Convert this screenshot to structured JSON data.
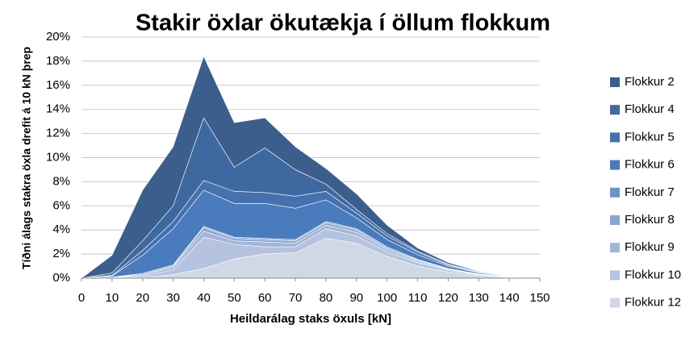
{
  "chart_data": {
    "type": "stacked_area",
    "title": "Stakir öxlar ökutækja í öllum flokkum",
    "x_label": "Heildarálag staks öxuls  [kN]",
    "y_label": "Tíðni álags  stakra öxla drefit á 10 kN  þrep",
    "x": [
      0,
      10,
      20,
      30,
      40,
      50,
      60,
      70,
      80,
      90,
      100,
      110,
      120,
      130,
      140,
      150
    ],
    "xlim": [
      0,
      150
    ],
    "xticks": [
      0,
      10,
      20,
      30,
      40,
      50,
      60,
      70,
      80,
      90,
      100,
      110,
      120,
      130,
      140,
      150
    ],
    "ylim": [
      0,
      20
    ],
    "yticks": [
      {
        "value": 0,
        "label": "0%"
      },
      {
        "value": 2,
        "label": "2%"
      },
      {
        "value": 4,
        "label": "4%"
      },
      {
        "value": 6,
        "label": "6%"
      },
      {
        "value": 8,
        "label": "8%"
      },
      {
        "value": 10,
        "label": "10%"
      },
      {
        "value": 12,
        "label": "12%"
      },
      {
        "value": 14,
        "label": "14%"
      },
      {
        "value": 16,
        "label": "16%"
      },
      {
        "value": 18,
        "label": "18%"
      },
      {
        "value": 20,
        "label": "20%"
      }
    ],
    "grid": true,
    "legend": "right",
    "series": [
      {
        "name": "Flokkur 2",
        "color": "#3b5e8c",
        "values": [
          0,
          1.47,
          4.2,
          4.9,
          5.1,
          3.7,
          2.5,
          1.9,
          1.3,
          1.3,
          0.7,
          0.25,
          0.14,
          0.05,
          0.03,
          0.02
        ]
      },
      {
        "name": "Flokkur 4",
        "color": "#3e68a0",
        "values": [
          0,
          0.2,
          0.8,
          1.3,
          5.2,
          2.0,
          3.7,
          2.2,
          0.6,
          0.3,
          0.2,
          0.1,
          0.06,
          0.02,
          0.01,
          0.01
        ]
      },
      {
        "name": "Flokkur 5",
        "color": "#4571ae",
        "values": [
          0,
          0.05,
          0.4,
          0.6,
          0.8,
          1.0,
          0.9,
          1.0,
          0.7,
          0.4,
          0.3,
          0.2,
          0.1,
          0.04,
          0.02,
          0.01
        ]
      },
      {
        "name": "Flokkur 6",
        "color": "#4a7bbd",
        "values": [
          0,
          0.1,
          1.5,
          3.0,
          3.0,
          2.8,
          2.9,
          2.6,
          1.8,
          0.9,
          0.6,
          0.4,
          0.2,
          0.1,
          0.03,
          0.01
        ]
      },
      {
        "name": "Flokkur 7",
        "color": "#6e92c7",
        "values": [
          0,
          0.02,
          0.1,
          0.1,
          0.1,
          0.1,
          0.1,
          0.1,
          0.1,
          0.1,
          0.1,
          0.05,
          0.02,
          0.01,
          0.01,
          0
        ]
      },
      {
        "name": "Flokkur 8",
        "color": "#8ca6d1",
        "values": [
          0,
          0.02,
          0.05,
          0.1,
          0.3,
          0.2,
          0.2,
          0.2,
          0.2,
          0.2,
          0.1,
          0.1,
          0.05,
          0.02,
          0.01,
          0
        ]
      },
      {
        "name": "Flokkur 9",
        "color": "#a3b5d8",
        "values": [
          0,
          0.02,
          0.1,
          0.2,
          0.5,
          0.3,
          0.4,
          0.3,
          0.3,
          0.3,
          0.2,
          0.1,
          0.08,
          0.04,
          0.02,
          0
        ]
      },
      {
        "name": "Flokkur 10",
        "color": "#b5c3e0",
        "values": [
          0,
          0.02,
          0.1,
          0.4,
          2.6,
          1.2,
          0.6,
          0.5,
          0.8,
          0.6,
          0.4,
          0.3,
          0.15,
          0.08,
          0.03,
          0
        ]
      },
      {
        "name": "Flokkur 12",
        "color": "#d0d7e5",
        "values": [
          0,
          0,
          0.05,
          0.3,
          0.8,
          1.6,
          2.0,
          2.1,
          3.3,
          2.9,
          1.8,
          1.0,
          0.5,
          0.2,
          0.05,
          0
        ]
      }
    ]
  }
}
